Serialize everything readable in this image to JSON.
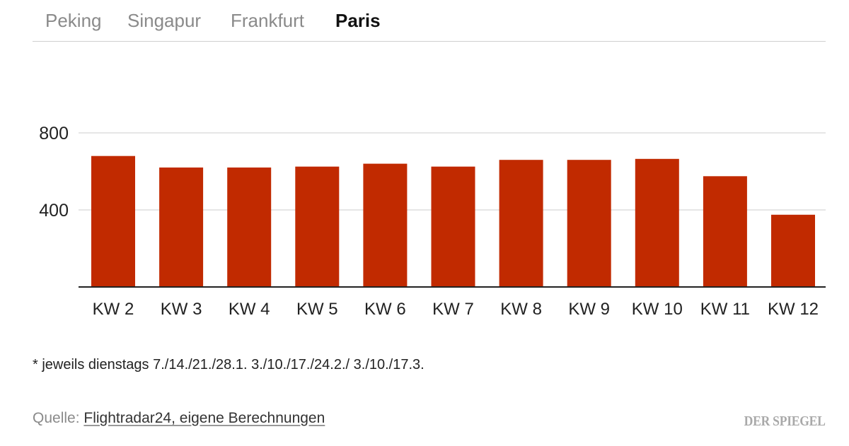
{
  "tabs": [
    {
      "label": "Peking",
      "active": false
    },
    {
      "label": "Singapur",
      "active": false
    },
    {
      "label": "Frankfurt",
      "active": false
    },
    {
      "label": "Paris",
      "active": true
    }
  ],
  "colors": {
    "bar": "#c12a00",
    "grid": "#cccccc",
    "baseline": "#222222",
    "inactive_tab": "#8a8a8a"
  },
  "chart_data": {
    "type": "bar",
    "categories": [
      "KW 2",
      "KW 3",
      "KW 4",
      "KW 5",
      "KW 6",
      "KW 7",
      "KW 8",
      "KW 9",
      "KW 10",
      "KW 11",
      "KW 12"
    ],
    "values": [
      680,
      620,
      620,
      625,
      640,
      625,
      660,
      660,
      665,
      575,
      375
    ],
    "y_ticks": [
      400,
      800
    ],
    "ylim": [
      0,
      800
    ],
    "grid": true,
    "title": "",
    "xlabel": "",
    "ylabel": ""
  },
  "footnote": "* jeweils dienstags 7./14./21./28.1. 3./10./17./24.2./ 3./10./17.3.",
  "source": {
    "prefix": "Quelle: ",
    "link_text": "Flightradar24, eigene Berechnungen"
  },
  "brand": "DER SPIEGEL"
}
